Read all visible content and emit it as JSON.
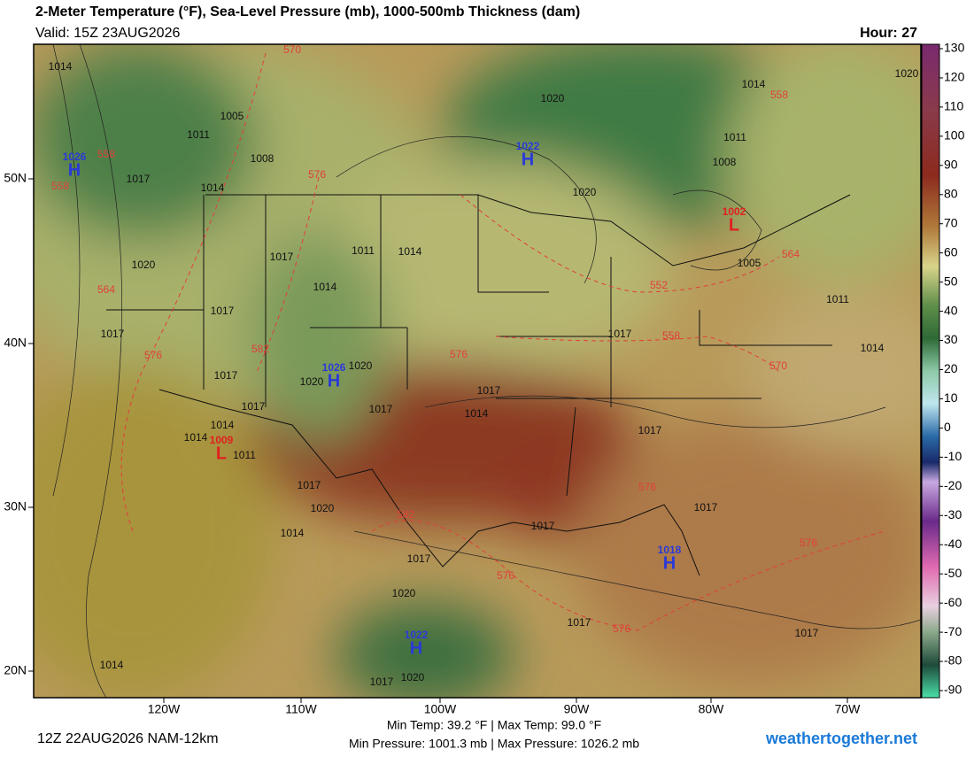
{
  "header": {
    "title": "2-Meter Temperature (°F), Sea-Level Pressure (mb), 1000-500mb Thickness (dam)",
    "valid": "Valid: 15Z 23AUG2026",
    "hour": "Hour: 27"
  },
  "colorbar": {
    "ticks": [
      130,
      120,
      110,
      100,
      90,
      80,
      70,
      60,
      50,
      40,
      30,
      20,
      10,
      0,
      -10,
      -20,
      -30,
      -40,
      -50,
      -60,
      -70,
      -80,
      -90
    ]
  },
  "lon_labels": [
    "120W",
    "110W",
    "100W",
    "90W",
    "80W",
    "70W"
  ],
  "lat_labels": [
    "50N",
    "40N",
    "30N",
    "20N"
  ],
  "centers": [
    {
      "symbol": "H",
      "pressure": "1026"
    },
    {
      "symbol": "H",
      "pressure": "1022"
    },
    {
      "symbol": "L",
      "pressure": "1002"
    },
    {
      "symbol": "H",
      "pressure": "1026"
    },
    {
      "symbol": "L",
      "pressure": "1009"
    },
    {
      "symbol": "H",
      "pressure": "1018"
    },
    {
      "symbol": "H",
      "pressure": "1022"
    }
  ],
  "isobar_labels": [
    "1014",
    "1005",
    "1011",
    "1008",
    "1017",
    "1014",
    "1020",
    "1020",
    "1014",
    "1020",
    "1011",
    "1008",
    "1011",
    "1014",
    "1017",
    "1014",
    "1020",
    "1017",
    "1017",
    "1005",
    "1011",
    "1017",
    "1014",
    "1017",
    "1020",
    "1020",
    "1017",
    "1017",
    "1017",
    "1014",
    "1014",
    "1014",
    "1011",
    "1017",
    "1017",
    "1020",
    "1017",
    "1017",
    "1014",
    "1017",
    "1020",
    "1017",
    "1017",
    "1014",
    "1017",
    "1020"
  ],
  "thickness_labels": [
    "570",
    "558",
    "558",
    "558",
    "576",
    "564",
    "564",
    "552",
    "558",
    "582",
    "576",
    "576",
    "570",
    "576",
    "582",
    "576",
    "576",
    "576"
  ],
  "footer": {
    "run": "12Z 22AUG2026 NAM-12km",
    "temp_stats": "Min Temp: 39.2 °F | Max Temp: 99.0 °F",
    "pressure_stats": "Min Pressure: 1001.3 mb | Max Pressure: 1026.2 mb",
    "site": "weathertogether.net"
  }
}
